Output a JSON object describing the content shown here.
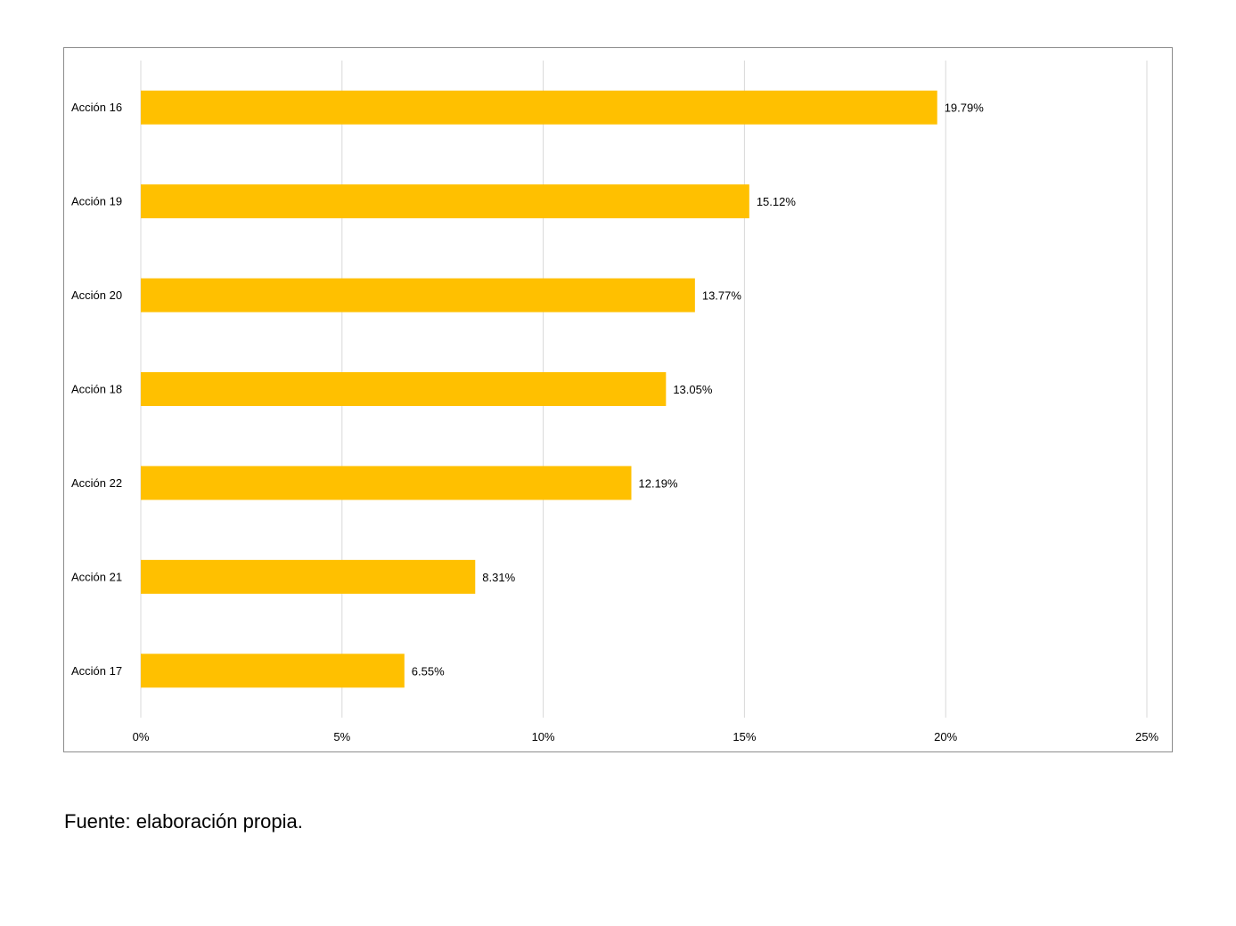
{
  "chart_data": {
    "type": "bar",
    "orientation": "horizontal",
    "categories": [
      "Acción 16",
      "Acción 19",
      "Acción 20",
      "Acción 18",
      "Acción 22",
      "Acción 21",
      "Acción 17"
    ],
    "values": [
      19.79,
      15.12,
      13.77,
      13.05,
      12.19,
      8.31,
      6.55
    ],
    "data_labels": [
      "19.79%",
      "15.12%",
      "13.77%",
      "13.05%",
      "12.19%",
      "8.31%",
      "6.55%"
    ],
    "x_ticks": [
      0,
      5,
      10,
      15,
      20,
      25
    ],
    "x_tick_labels": [
      "0%",
      "5%",
      "10%",
      "15%",
      "20%",
      "25%"
    ],
    "xlim": [
      0,
      25
    ],
    "grid": true,
    "legend": "none",
    "bar_color": "#FFC000",
    "title": "",
    "xlabel": "",
    "ylabel": ""
  },
  "source_note": "Fuente: elaboración propia."
}
